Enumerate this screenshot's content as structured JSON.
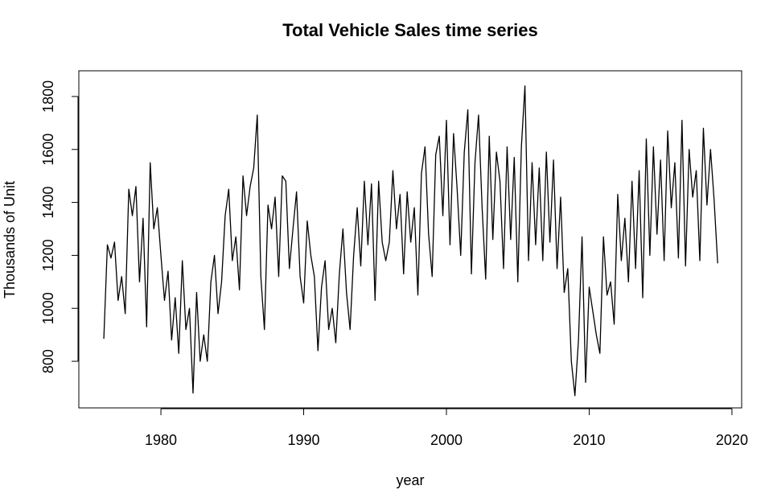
{
  "chart_data": {
    "type": "line",
    "title": "Total Vehicle Sales time series",
    "x_label": "year",
    "y_label": "Thousands of Unit",
    "x": [
      1976,
      1976.25,
      1976.5,
      1976.75,
      1977,
      1977.25,
      1977.5,
      1977.75,
      1978,
      1978.25,
      1978.5,
      1978.75,
      1979,
      1979.25,
      1979.5,
      1979.75,
      1980,
      1980.25,
      1980.5,
      1980.75,
      1981,
      1981.25,
      1981.5,
      1981.75,
      1982,
      1982.25,
      1982.5,
      1982.75,
      1983,
      1983.25,
      1983.5,
      1983.75,
      1984,
      1984.25,
      1984.5,
      1984.75,
      1985,
      1985.25,
      1985.5,
      1985.75,
      1986,
      1986.25,
      1986.5,
      1986.75,
      1987,
      1987.25,
      1987.5,
      1987.75,
      1988,
      1988.25,
      1988.5,
      1988.75,
      1989,
      1989.25,
      1989.5,
      1989.75,
      1990,
      1990.25,
      1990.5,
      1990.75,
      1991,
      1991.25,
      1991.5,
      1991.75,
      1992,
      1992.25,
      1992.5,
      1992.75,
      1993,
      1993.25,
      1993.5,
      1993.75,
      1994,
      1994.25,
      1994.5,
      1994.75,
      1995,
      1995.25,
      1995.5,
      1995.75,
      1996,
      1996.25,
      1996.5,
      1996.75,
      1997,
      1997.25,
      1997.5,
      1997.75,
      1998,
      1998.25,
      1998.5,
      1998.75,
      1999,
      1999.25,
      1999.5,
      1999.75,
      2000,
      2000.25,
      2000.5,
      2000.75,
      2001,
      2001.25,
      2001.5,
      2001.75,
      2002,
      2002.25,
      2002.5,
      2002.75,
      2003,
      2003.25,
      2003.5,
      2003.75,
      2004,
      2004.25,
      2004.5,
      2004.75,
      2005,
      2005.25,
      2005.5,
      2005.75,
      2006,
      2006.25,
      2006.5,
      2006.75,
      2007,
      2007.25,
      2007.5,
      2007.75,
      2008,
      2008.25,
      2008.5,
      2008.75,
      2009,
      2009.25,
      2009.5,
      2009.75,
      2010,
      2010.25,
      2010.5,
      2010.75,
      2011,
      2011.25,
      2011.5,
      2011.75,
      2012,
      2012.25,
      2012.5,
      2012.75,
      2013,
      2013.25,
      2013.5,
      2013.75,
      2014,
      2014.25,
      2014.5,
      2014.75,
      2015,
      2015.25,
      2015.5,
      2015.75,
      2016,
      2016.25,
      2016.5,
      2016.75,
      2017,
      2017.25,
      2017.5,
      2017.75,
      2018,
      2018.25,
      2018.5,
      2018.75,
      2019
    ],
    "series": [
      {
        "color": "#000000",
        "values": [
          885,
          1240,
          1190,
          1250,
          1030,
          1120,
          980,
          1450,
          1350,
          1460,
          1100,
          1340,
          930,
          1550,
          1300,
          1380,
          1200,
          1030,
          1140,
          880,
          1040,
          830,
          1180,
          920,
          1000,
          680,
          1060,
          800,
          900,
          800,
          1100,
          1200,
          980,
          1100,
          1350,
          1450,
          1180,
          1270,
          1070,
          1500,
          1350,
          1460,
          1530,
          1730,
          1120,
          920,
          1390,
          1300,
          1420,
          1120,
          1500,
          1480,
          1150,
          1300,
          1440,
          1120,
          1020,
          1330,
          1200,
          1120,
          840,
          1080,
          1180,
          920,
          1000,
          870,
          1130,
          1300,
          1060,
          920,
          1200,
          1380,
          1160,
          1480,
          1240,
          1470,
          1030,
          1480,
          1250,
          1180,
          1250,
          1520,
          1300,
          1430,
          1130,
          1440,
          1250,
          1380,
          1050,
          1510,
          1610,
          1280,
          1120,
          1580,
          1650,
          1350,
          1710,
          1240,
          1660,
          1450,
          1200,
          1590,
          1750,
          1130,
          1550,
          1730,
          1380,
          1110,
          1650,
          1260,
          1590,
          1480,
          1150,
          1610,
          1260,
          1570,
          1100,
          1610,
          1840,
          1180,
          1550,
          1240,
          1530,
          1180,
          1590,
          1250,
          1560,
          1150,
          1420,
          1060,
          1150,
          800,
          670,
          880,
          1270,
          720,
          1080,
          990,
          900,
          830,
          1270,
          1050,
          1100,
          940,
          1430,
          1180,
          1340,
          1100,
          1480,
          1150,
          1520,
          1040,
          1640,
          1200,
          1610,
          1280,
          1560,
          1180,
          1670,
          1380,
          1550,
          1190,
          1710,
          1160,
          1600,
          1420,
          1520,
          1180,
          1680,
          1390,
          1600,
          1410,
          1170
        ]
      }
    ],
    "xlim": [
      1974.25,
      2020.68
    ],
    "ylim": [
      624,
      1897
    ],
    "xticks": [
      1980,
      1990,
      2000,
      2010,
      2020
    ],
    "yticks": [
      800,
      1000,
      1200,
      1400,
      1600,
      1800
    ]
  }
}
